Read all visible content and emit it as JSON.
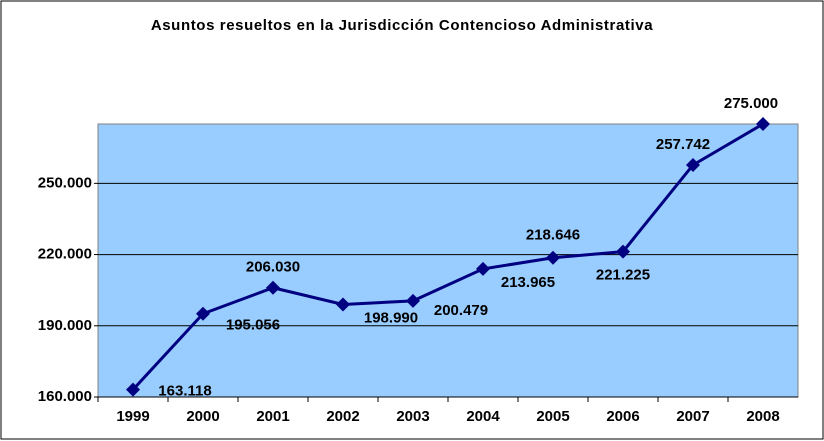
{
  "chart_data": {
    "type": "line",
    "title": "Asuntos resueltos en la Jurisdicción Contencioso Administrativa",
    "categories": [
      "1999",
      "2000",
      "2001",
      "2002",
      "2003",
      "2004",
      "2005",
      "2006",
      "2007",
      "2008"
    ],
    "series": [
      {
        "name": "Asuntos resueltos",
        "color": "#000080",
        "values": [
          163118,
          195056,
          206030,
          198990,
          200479,
          213965,
          218646,
          221225,
          257742,
          275000
        ],
        "value_labels": [
          "163.118",
          "195.056",
          "206.030",
          "198.990",
          "200.479",
          "213.965",
          "218.646",
          "221.225",
          "257.742",
          "275.000"
        ]
      }
    ],
    "ylim": [
      160000,
      275000
    ],
    "yticks": [
      {
        "value": 160000,
        "label": "160.000"
      },
      {
        "value": 190000,
        "label": "190.000"
      },
      {
        "value": 220000,
        "label": "220.000"
      },
      {
        "value": 250000,
        "label": "250.000"
      }
    ],
    "grid": true,
    "plot_background": "#99ccff"
  }
}
